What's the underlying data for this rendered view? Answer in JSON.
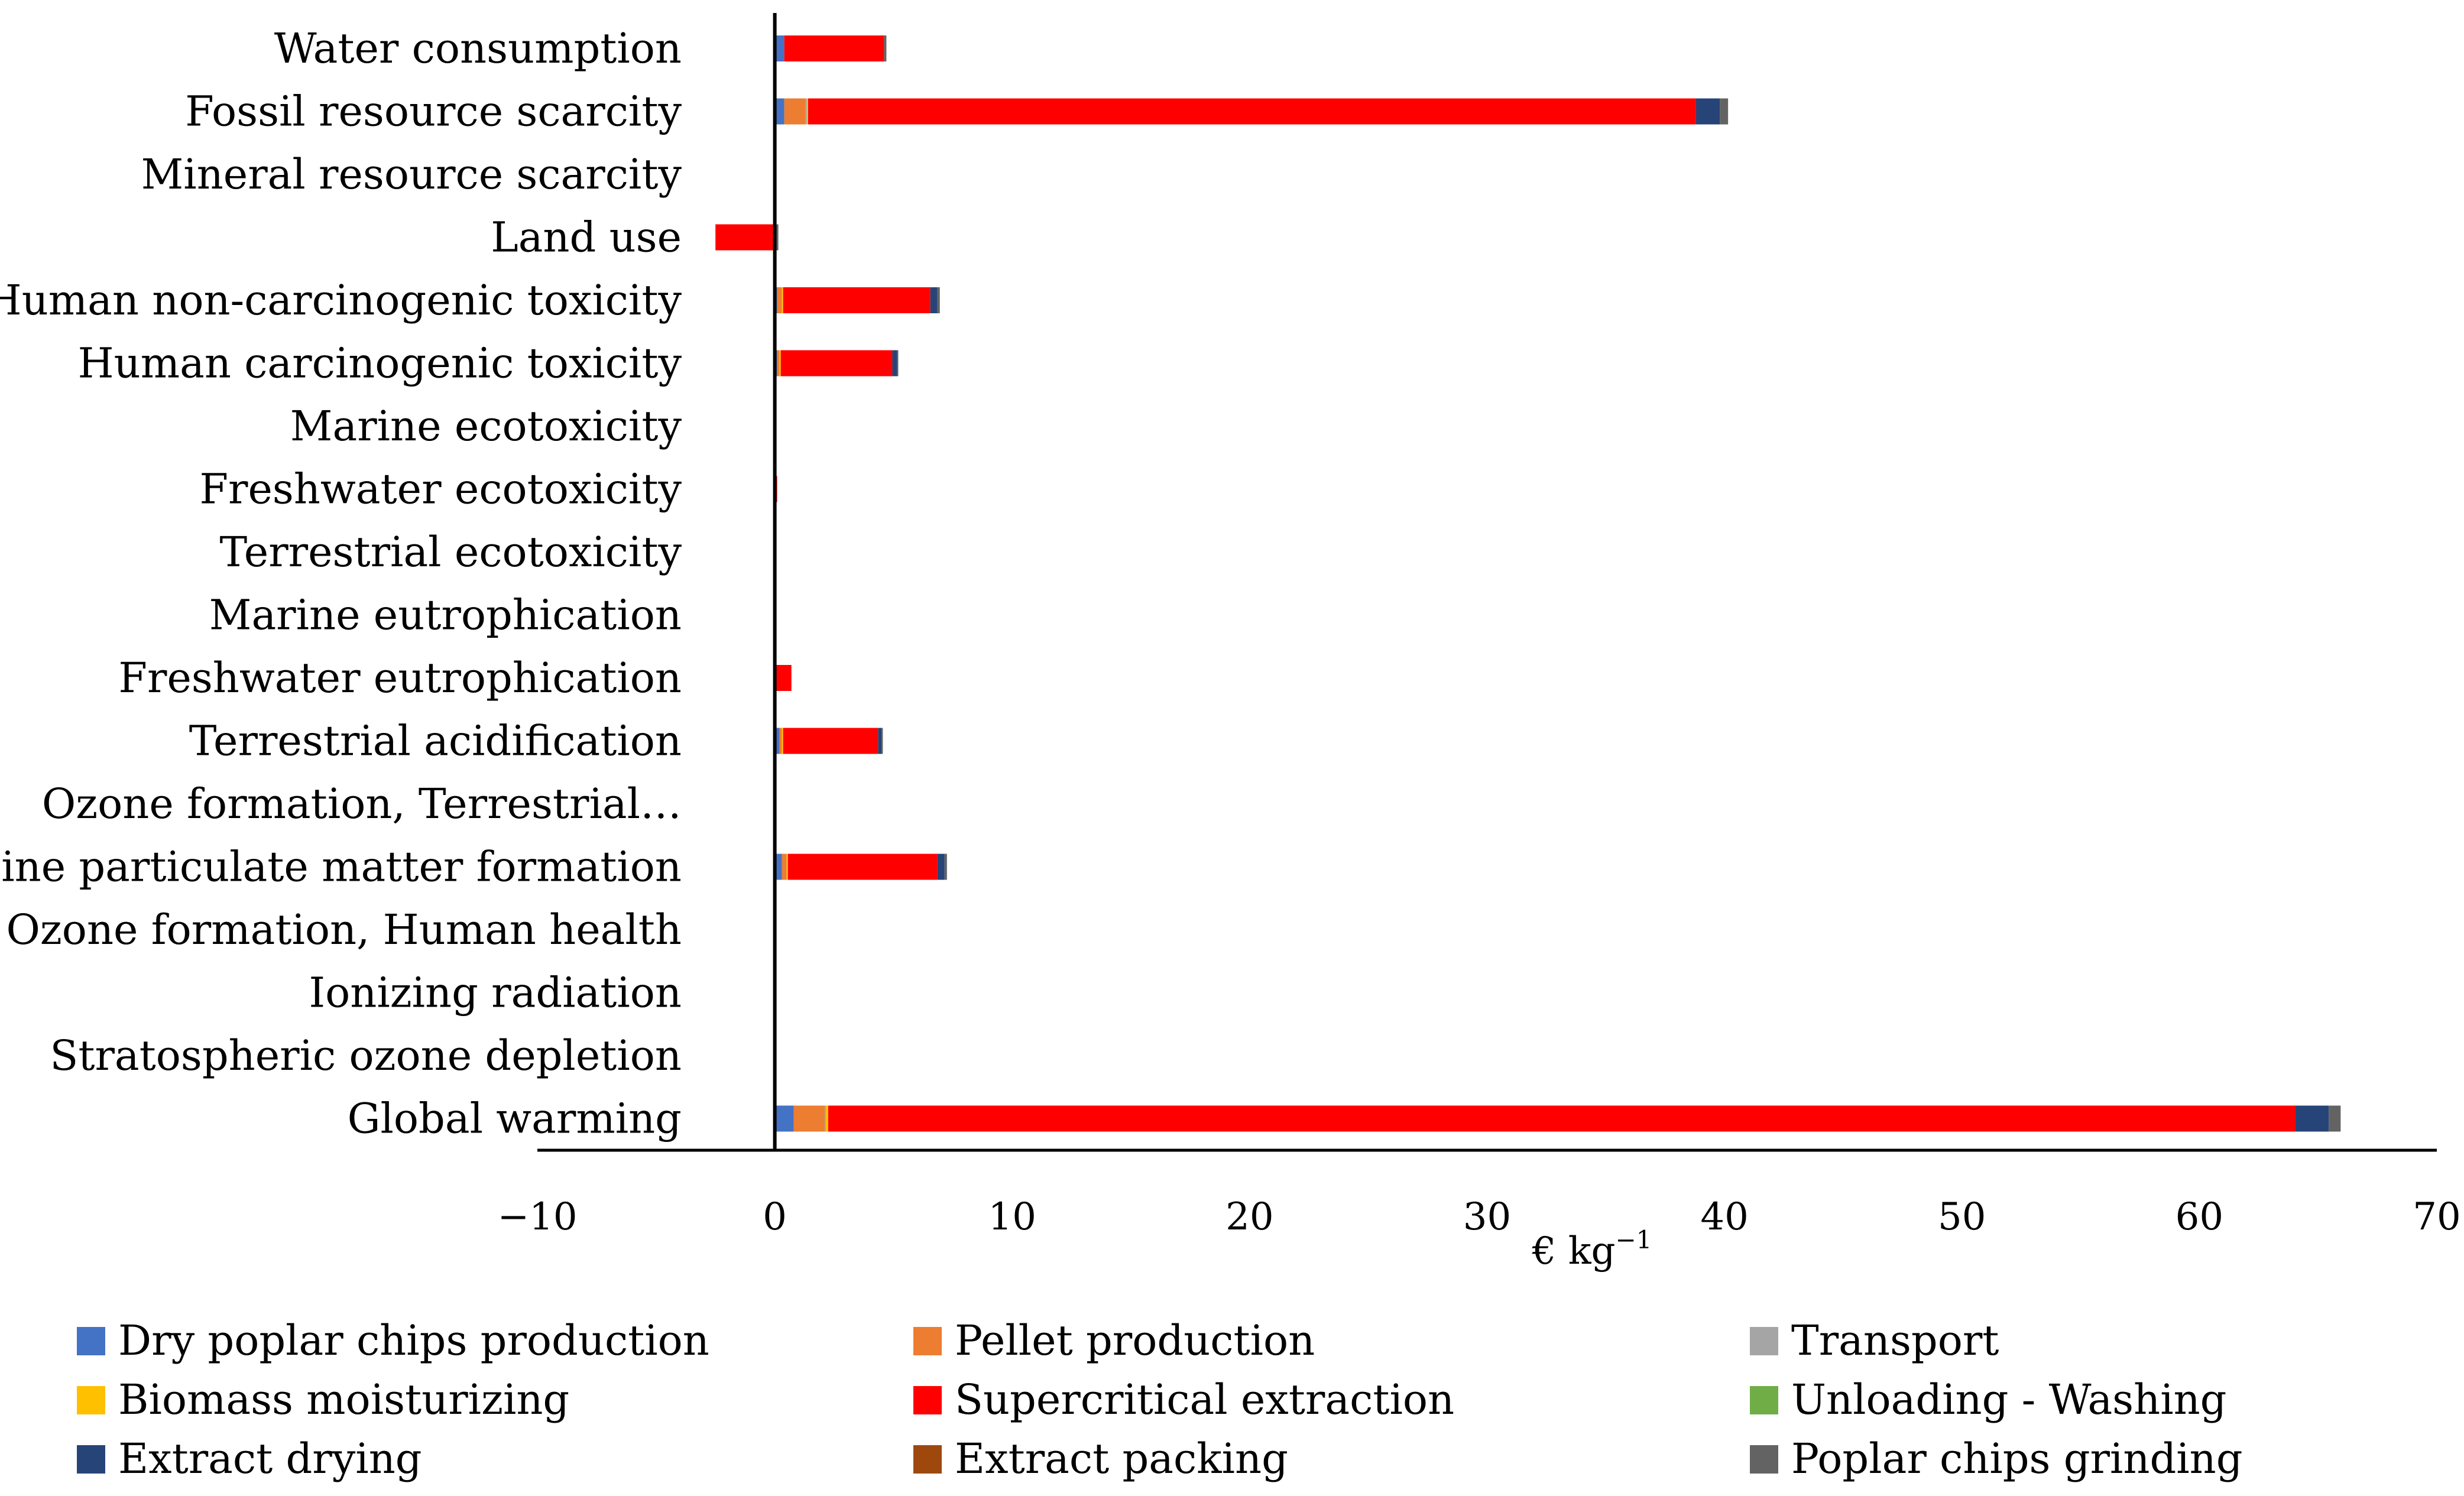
{
  "chart_data": {
    "type": "bar",
    "orientation": "horizontal",
    "stacked": true,
    "title": "",
    "xlabel": "€ kg",
    "xlabel_superscript": "−1",
    "ylabel": "",
    "xlim": [
      -10,
      70
    ],
    "xticks": [
      -10,
      0,
      10,
      20,
      30,
      40,
      50,
      60,
      70
    ],
    "xtick_labels": [
      "−10",
      "0",
      "10",
      "20",
      "30",
      "40",
      "50",
      "60",
      "70"
    ],
    "grid": false,
    "legend_position": "bottom",
    "categories": [
      "Water consumption",
      "Fossil resource scarcity",
      "Mineral resource scarcity",
      "Land use",
      "Human non-carcinogenic toxicity",
      "Human carcinogenic toxicity",
      "Marine ecotoxicity",
      "Freshwater ecotoxicity",
      "Terrestrial ecotoxicity",
      "Marine eutrophication",
      "Freshwater eutrophication",
      "Terrestrial acidification",
      "Ozone formation, Terrestrial…",
      "Fine particulate matter formation",
      "Ozone formation, Human health",
      "Ionizing radiation",
      "Stratospheric ozone depletion",
      "Global warming"
    ],
    "series": [
      {
        "name": "Dry poplar chips production",
        "color": "#4472c4",
        "values": [
          0.4,
          0.4,
          0,
          0,
          0.1,
          0.1,
          0,
          0,
          0,
          0,
          0.05,
          0.2,
          0,
          0.3,
          0,
          0,
          0,
          0.8
        ]
      },
      {
        "name": "Pellet production",
        "color": "#ed7d31",
        "values": [
          0,
          0.9,
          0,
          0,
          0.2,
          0.1,
          0,
          0,
          0,
          0,
          0,
          0.1,
          0,
          0.2,
          0,
          0,
          0,
          1.3
        ]
      },
      {
        "name": "Transport",
        "color": "#a5a5a5",
        "values": [
          0,
          0.05,
          0,
          0,
          0,
          0,
          0,
          0,
          0,
          0,
          0,
          0,
          0,
          0,
          0,
          0,
          0,
          0.05
        ]
      },
      {
        "name": "Biomass moisturizing",
        "color": "#ffc000",
        "values": [
          0,
          0.05,
          0,
          0,
          0.05,
          0.05,
          0,
          0,
          0,
          0,
          0,
          0.05,
          0,
          0.05,
          0,
          0,
          0,
          0.1
        ]
      },
      {
        "name": "Supercritical extraction",
        "color": "#ff0000",
        "values": [
          4.2,
          37.4,
          0,
          -2.5,
          6.2,
          4.7,
          0,
          0.1,
          0,
          0,
          0.65,
          4.0,
          0,
          6.3,
          0,
          0,
          0,
          61.8
        ]
      },
      {
        "name": "Unloading - Washing",
        "color": "#70ad47",
        "values": [
          0,
          0,
          0,
          0,
          0,
          0,
          0,
          0,
          0,
          0,
          0,
          0,
          0,
          0,
          0,
          0,
          0,
          0
        ]
      },
      {
        "name": "Extract drying",
        "color": "#264478",
        "values": [
          0,
          1.0,
          0,
          0,
          0.3,
          0.2,
          0,
          0,
          0,
          0,
          0,
          0.15,
          0,
          0.3,
          0,
          0,
          0,
          1.4
        ]
      },
      {
        "name": "Extract packing",
        "color": "#9e480e",
        "values": [
          0,
          0,
          0,
          0,
          0,
          0,
          0,
          0,
          0,
          0,
          0,
          0,
          0,
          0,
          0,
          0,
          0,
          0
        ]
      },
      {
        "name": "Poplar chips grinding",
        "color": "#636363",
        "values": [
          0.1,
          0.35,
          0,
          0.15,
          0.1,
          0.05,
          0,
          0,
          0,
          0,
          0,
          0.05,
          0,
          0.1,
          0,
          0,
          0,
          0.5
        ]
      }
    ]
  }
}
